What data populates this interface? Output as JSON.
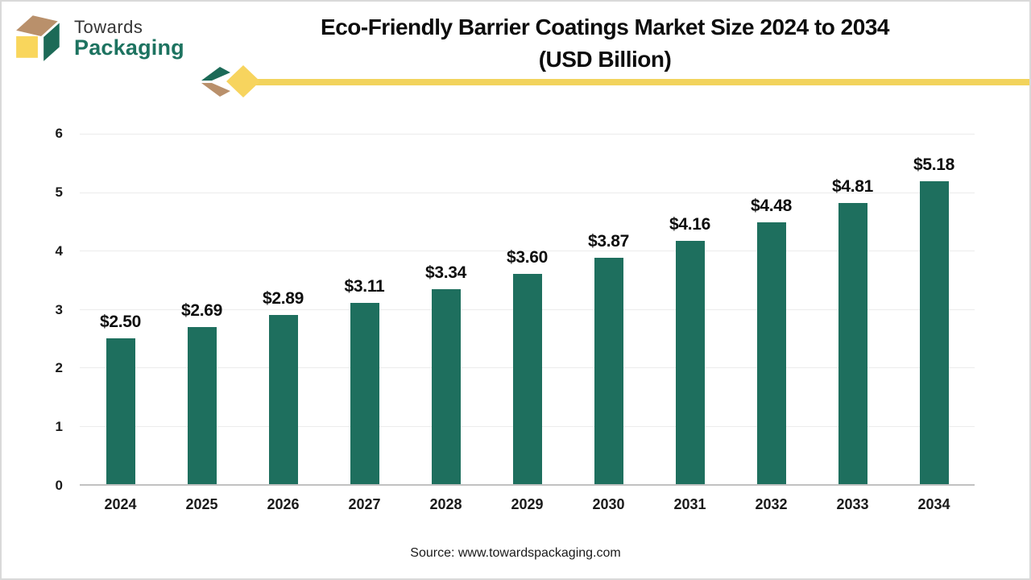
{
  "header": {
    "logo": {
      "brand_top": "Towards",
      "brand_bottom": "Packaging"
    },
    "title_line1": "Eco-Friendly Barrier Coatings Market Size 2024 to 2034",
    "title_line2": "(USD Billion)"
  },
  "footer": {
    "source": "Source: www.towardspackaging.com"
  },
  "colors": {
    "bar": "#1e6f5e",
    "accent_yellow": "#f2d35c",
    "logo_green": "#1d7360",
    "logo_tan": "#b9906b",
    "logo_yellow": "#f9d65c",
    "gridline": "#ececec",
    "axis_line": "#c1c1c1"
  },
  "chart_data": {
    "type": "bar",
    "title": "Eco-Friendly Barrier Coatings Market Size 2024 to 2034 (USD Billion)",
    "categories": [
      "2024",
      "2025",
      "2026",
      "2027",
      "2028",
      "2029",
      "2030",
      "2031",
      "2032",
      "2033",
      "2034"
    ],
    "values": [
      2.5,
      2.69,
      2.89,
      3.11,
      3.34,
      3.6,
      3.87,
      4.16,
      4.48,
      4.81,
      5.18
    ],
    "value_labels": [
      "$2.50",
      "$2.69",
      "$2.89",
      "$3.11",
      "$3.34",
      "$3.60",
      "$3.87",
      "$4.16",
      "$4.48",
      "$4.81",
      "$5.18"
    ],
    "xlabel": "",
    "ylabel": "",
    "ylim": [
      0,
      6
    ],
    "yticks": [
      0,
      1,
      2,
      3,
      4,
      5,
      6
    ],
    "grid": true,
    "legend": "none"
  }
}
